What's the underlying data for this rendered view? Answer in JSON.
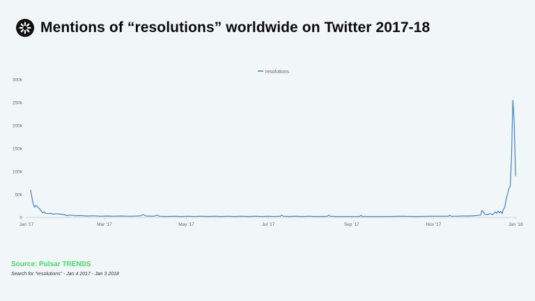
{
  "header": {
    "title": "Mentions of “resolutions” worldwide on Twitter 2017-18",
    "logo_icon": "pulsar-logo-icon"
  },
  "footer": {
    "source": "Source: Pulsar TRENDS",
    "subtitle": "Search for \"resolutions\" - Jan 4 2017 - Jan 3 2018"
  },
  "colors": {
    "line": "#4a7fbf",
    "grid": "#dfe5ea",
    "source": "#4bd36b",
    "background": "#f1f6f8"
  },
  "chart_data": {
    "type": "line",
    "title": "Mentions of “resolutions” worldwide on Twitter 2017-18",
    "xlabel": "",
    "ylabel": "",
    "legend": {
      "position": "top-center",
      "entries": [
        "resolutions"
      ]
    },
    "grid": false,
    "xlim": [
      0,
      365
    ],
    "ylim": [
      0,
      300000
    ],
    "y_ticks": [
      {
        "value": 0,
        "label": "0"
      },
      {
        "value": 50000,
        "label": "50k"
      },
      {
        "value": 100000,
        "label": "100k"
      },
      {
        "value": 150000,
        "label": "150k"
      },
      {
        "value": 200000,
        "label": "200k"
      },
      {
        "value": 250000,
        "label": "250k"
      },
      {
        "value": 300000,
        "label": "300k"
      }
    ],
    "x_ticks": [
      {
        "day": 0,
        "label": "Jan '17"
      },
      {
        "day": 58,
        "label": "Mar '17"
      },
      {
        "day": 119,
        "label": "May '17"
      },
      {
        "day": 180,
        "label": "Jul '17"
      },
      {
        "day": 242,
        "label": "Sep '17"
      },
      {
        "day": 303,
        "label": "Nov '17"
      },
      {
        "day": 364,
        "label": "Jan '18"
      }
    ],
    "series": [
      {
        "name": "resolutions",
        "points": [
          [
            3,
            60000
          ],
          [
            4,
            45000
          ],
          [
            5,
            30000
          ],
          [
            6,
            22000
          ],
          [
            7,
            26000
          ],
          [
            8,
            24000
          ],
          [
            9,
            20000
          ],
          [
            10,
            18000
          ],
          [
            11,
            14000
          ],
          [
            12,
            10000
          ],
          [
            13,
            12000
          ],
          [
            14,
            9000
          ],
          [
            16,
            8000
          ],
          [
            18,
            9000
          ],
          [
            20,
            7000
          ],
          [
            22,
            8000
          ],
          [
            25,
            7000
          ],
          [
            28,
            6000
          ],
          [
            30,
            4000
          ],
          [
            33,
            5000
          ],
          [
            36,
            3500
          ],
          [
            40,
            4000
          ],
          [
            45,
            3000
          ],
          [
            50,
            3500
          ],
          [
            55,
            2500
          ],
          [
            60,
            3000
          ],
          [
            65,
            2500
          ],
          [
            70,
            3000
          ],
          [
            75,
            2500
          ],
          [
            80,
            2500
          ],
          [
            85,
            3500
          ],
          [
            87,
            6000
          ],
          [
            89,
            3000
          ],
          [
            95,
            2500
          ],
          [
            97,
            5000
          ],
          [
            99,
            2500
          ],
          [
            105,
            2000
          ],
          [
            110,
            2500
          ],
          [
            115,
            2000
          ],
          [
            120,
            2500
          ],
          [
            125,
            2000
          ],
          [
            130,
            2500
          ],
          [
            135,
            2000
          ],
          [
            140,
            2500
          ],
          [
            145,
            2000
          ],
          [
            150,
            2500
          ],
          [
            155,
            2000
          ],
          [
            160,
            2500
          ],
          [
            165,
            2000
          ],
          [
            170,
            2500
          ],
          [
            175,
            2000
          ],
          [
            180,
            2500
          ],
          [
            185,
            2000
          ],
          [
            189,
            2500
          ],
          [
            190,
            5000
          ],
          [
            191,
            2500
          ],
          [
            195,
            2000
          ],
          [
            200,
            2500
          ],
          [
            205,
            2000
          ],
          [
            210,
            2500
          ],
          [
            215,
            2000
          ],
          [
            220,
            2000
          ],
          [
            224,
            2500
          ],
          [
            225,
            5000
          ],
          [
            226,
            2500
          ],
          [
            230,
            2000
          ],
          [
            240,
            2000
          ],
          [
            248,
            2000
          ],
          [
            249,
            4500
          ],
          [
            250,
            2000
          ],
          [
            260,
            2000
          ],
          [
            270,
            2000
          ],
          [
            280,
            2500
          ],
          [
            290,
            2000
          ],
          [
            300,
            2500
          ],
          [
            310,
            2500
          ],
          [
            314,
            2500
          ],
          [
            315,
            4500
          ],
          [
            316,
            2500
          ],
          [
            320,
            2500
          ],
          [
            325,
            3000
          ],
          [
            330,
            3000
          ],
          [
            335,
            4000
          ],
          [
            338,
            5000
          ],
          [
            339,
            15000
          ],
          [
            340,
            12000
          ],
          [
            341,
            7000
          ],
          [
            343,
            6000
          ],
          [
            345,
            8000
          ],
          [
            347,
            6000
          ],
          [
            349,
            12000
          ],
          [
            350,
            9000
          ],
          [
            351,
            14000
          ],
          [
            352,
            10000
          ],
          [
            353,
            13000
          ],
          [
            354,
            8000
          ],
          [
            355,
            18000
          ],
          [
            356,
            22000
          ],
          [
            357,
            40000
          ],
          [
            358,
            50000
          ],
          [
            359,
            62000
          ],
          [
            360,
            68000
          ],
          [
            361,
            130000
          ],
          [
            362,
            255000
          ],
          [
            363,
            210000
          ],
          [
            364,
            90000
          ]
        ]
      }
    ]
  }
}
